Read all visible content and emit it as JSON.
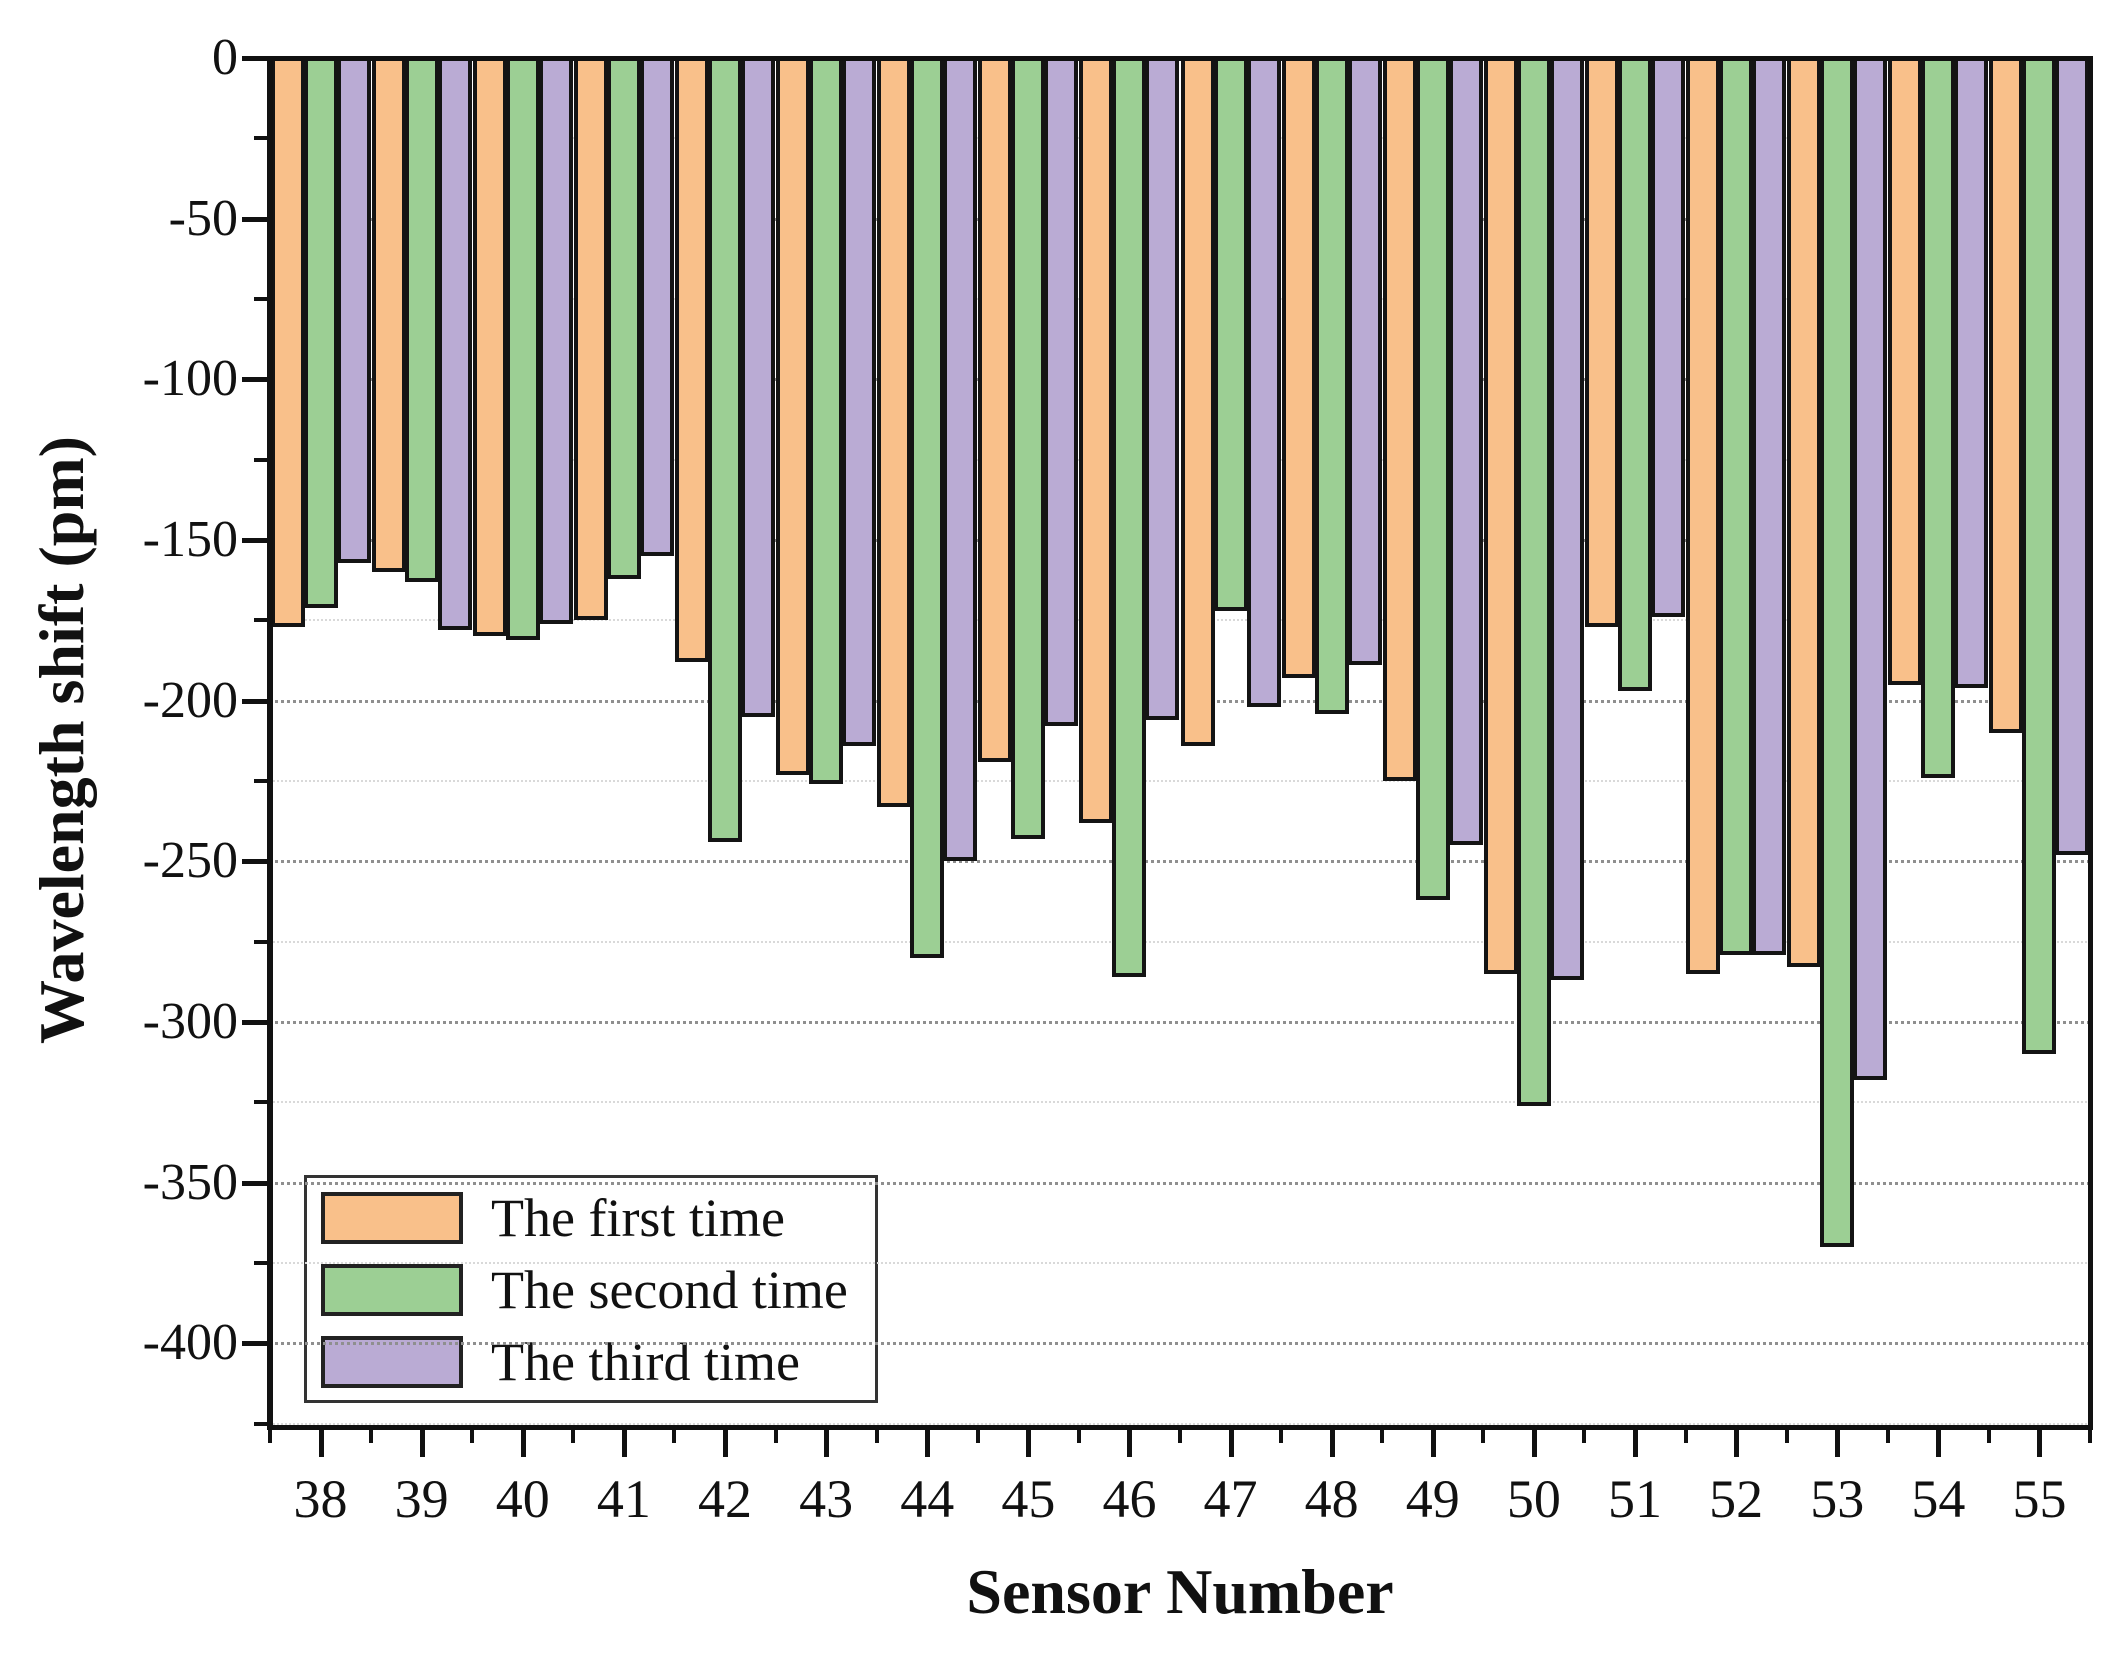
{
  "figure": {
    "y_axis_title": "Wavelength shift (pm)",
    "x_axis_title": "Sensor Number"
  },
  "chart_data": {
    "type": "bar",
    "title": "",
    "xlabel": "Sensor Number",
    "ylabel": "Wavelength shift (pm)",
    "categories": [
      "38",
      "39",
      "40",
      "41",
      "42",
      "43",
      "44",
      "45",
      "46",
      "47",
      "48",
      "49",
      "50",
      "51",
      "52",
      "53",
      "54",
      "55"
    ],
    "series": [
      {
        "name": "The first time",
        "color": "#F9C08A",
        "values": [
          -177,
          -160,
          -180,
          -175,
          -188,
          -223,
          -233,
          -219,
          -238,
          -214,
          -193,
          -225,
          -285,
          -177,
          -285,
          -283,
          -195,
          -210
        ]
      },
      {
        "name": "The second time",
        "color": "#9CCF94",
        "values": [
          -171,
          -163,
          -181,
          -162,
          -244,
          -226,
          -280,
          -243,
          -286,
          -172,
          -204,
          -262,
          -326,
          -197,
          -279,
          -370,
          -224,
          -310
        ]
      },
      {
        "name": "The third time",
        "color": "#BAABD4",
        "values": [
          -157,
          -178,
          -176,
          -155,
          -205,
          -214,
          -250,
          -208,
          -206,
          -202,
          -189,
          -245,
          -287,
          -174,
          -279,
          -318,
          -196,
          -248
        ]
      }
    ],
    "ylim": [
      -426,
      0
    ],
    "yticks": [
      0,
      -50,
      -100,
      -150,
      -200,
      -250,
      -300,
      -350,
      -400
    ],
    "ytick_labels": [
      "0",
      "-50",
      "-100",
      "-150",
      "-200",
      "-250",
      "-300",
      "-350",
      "-400"
    ],
    "ytick_minor_step": 25,
    "grid": "horizontal dotted at major and minor ticks",
    "legend_position": "bottom-left",
    "bar_edge_color": "#141414"
  }
}
